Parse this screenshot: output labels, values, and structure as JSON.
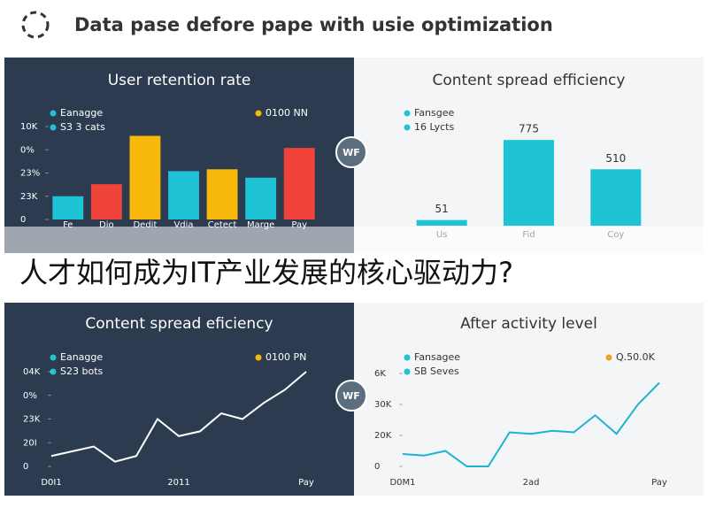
{
  "header": {
    "title": "Data pase defore pape with usie optimization"
  },
  "banner": {
    "text": "人才如何成为IT产业发展的核心驱动力?"
  },
  "badge": "WF",
  "chart_data": [
    {
      "type": "bar",
      "title": "User retention rate",
      "background": "#2c3b4f",
      "text_color": "#ffffff",
      "legend": [
        {
          "name": "Eanagge",
          "color": "#1fc3d6"
        },
        {
          "name": "S3 3 cats",
          "color": "#1fc3d6"
        },
        {
          "name": "0100 NN",
          "color": "#f9b90c"
        }
      ],
      "categories": [
        "Fe",
        "Dio",
        "Dedit",
        "Vdia",
        "Cetect",
        "Marge",
        "Pay"
      ],
      "values": [
        25,
        38,
        90,
        52,
        54,
        45,
        77
      ],
      "colors": [
        "#1fc3d6",
        "#f0433a",
        "#f9b90c",
        "#1fc3d6",
        "#f9b90c",
        "#1fc3d6",
        "#f0433a"
      ],
      "ylim": [
        0,
        100
      ],
      "yticks": [
        0,
        {
          "value": 25,
          "label": "23K"
        },
        {
          "value": 50,
          "label": "23%"
        },
        {
          "value": 75,
          "label": "0%"
        },
        {
          "value": 100,
          "label": "10K"
        }
      ]
    },
    {
      "type": "bar",
      "title": "Content spread efficiency",
      "background": "#f4f5f6",
      "text_color": "#333333",
      "legend": [
        {
          "name": "Fansgee",
          "color": "#1fc3d6"
        },
        {
          "name": "16 Lycts",
          "color": "#1fc3d6"
        }
      ],
      "categories": [
        "Us",
        "Fid",
        "Coy"
      ],
      "values": [
        51,
        775,
        510
      ],
      "value_labels": [
        "51",
        "775",
        "510"
      ],
      "color": "#1fc3d6",
      "ylim": [
        0,
        1000
      ]
    },
    {
      "type": "line",
      "title": "Content spread eficiency",
      "background": "#2c3b4f",
      "text_color": "#ffffff",
      "legend": [
        {
          "name": "Eanagge",
          "color": "#1fc3d6"
        },
        {
          "name": "S23 bots",
          "color": "#1fc3d6"
        },
        {
          "name": "0100 PN",
          "color": "#f9b90c"
        }
      ],
      "categories": [
        "D0I1",
        null,
        null,
        null,
        null,
        null,
        "2011",
        null,
        null,
        null,
        null,
        null,
        "Pay"
      ],
      "values": [
        11,
        16,
        21,
        5,
        11,
        50,
        32,
        37,
        56,
        50,
        67,
        81,
        100
      ],
      "color": "#ffffff",
      "ylim": [
        0,
        100
      ],
      "yticks": [
        0,
        {
          "value": 25,
          "label": "20I"
        },
        {
          "value": 50,
          "label": "23K"
        },
        {
          "value": 75,
          "label": "0%"
        },
        {
          "value": 100,
          "label": "04K"
        }
      ]
    },
    {
      "type": "line",
      "title": "After activity level",
      "background": "#f4f5f6",
      "text_color": "#333333",
      "legend": [
        {
          "name": "Fansagee",
          "color": "#1fc3d6"
        },
        {
          "name": "SB Seves",
          "color": "#1fc3d6"
        },
        {
          "name": "Q.50.0K",
          "color": "#f4a21b"
        }
      ],
      "categories": [
        "D0M1",
        null,
        null,
        null,
        null,
        null,
        "2ad",
        null,
        null,
        null,
        null,
        null,
        "Pay"
      ],
      "values": [
        8,
        7,
        10,
        0,
        0,
        22,
        21,
        23,
        22,
        33,
        21,
        40,
        54
      ],
      "color": "#1fb3d0",
      "ylim": [
        0,
        60
      ],
      "yticks": [
        0,
        {
          "value": 20,
          "label": "20K"
        },
        {
          "value": 40,
          "label": "30K"
        },
        {
          "value": 60,
          "label": "6K"
        }
      ]
    }
  ]
}
